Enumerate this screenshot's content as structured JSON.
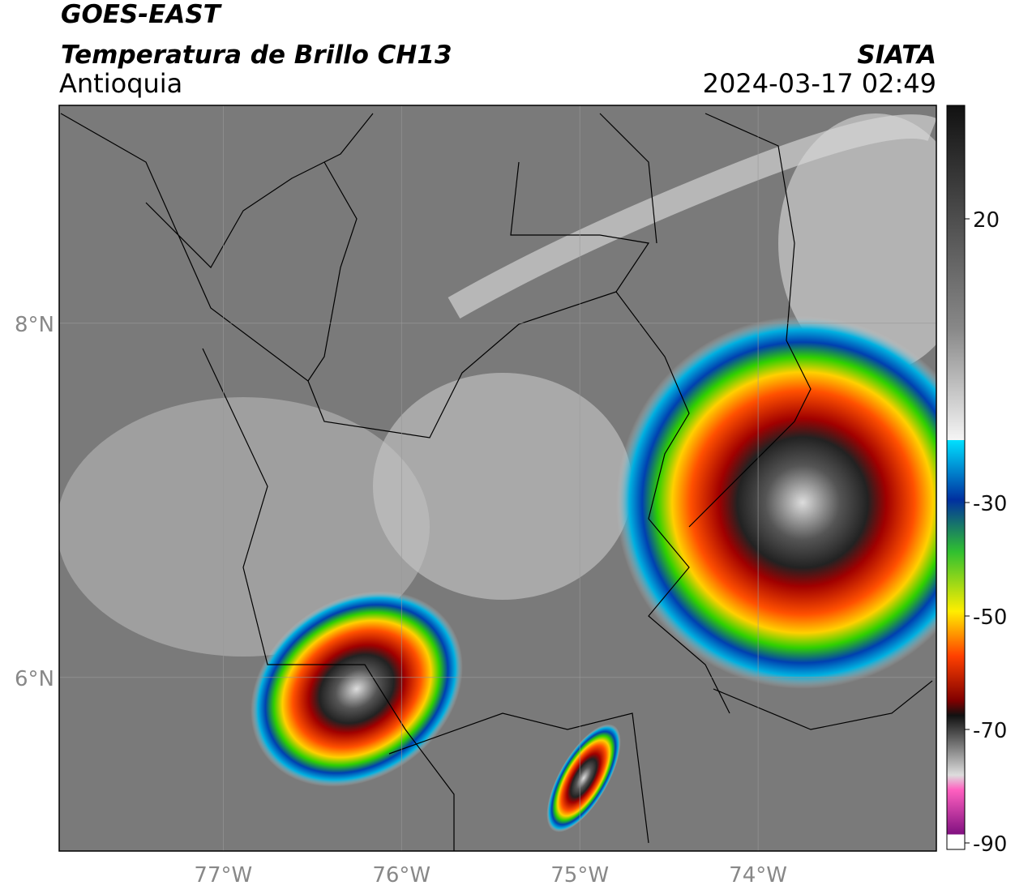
{
  "header": {
    "title": "GOES-EAST",
    "subtitle": "Temperatura de Brillo CH13",
    "region": "Antioquia",
    "source": "SIATA",
    "datetime": "2024-03-17 02:49"
  },
  "map": {
    "xlim": [
      -77.92,
      -73.0
    ],
    "ylim": [
      5.02,
      9.23
    ],
    "xticks": [
      {
        "value": -77,
        "label": "77°W"
      },
      {
        "value": -76,
        "label": "76°W"
      },
      {
        "value": -75,
        "label": "75°W"
      },
      {
        "value": -74,
        "label": "74°W"
      }
    ],
    "yticks": [
      {
        "value": 6,
        "label": "6°N"
      },
      {
        "value": 8,
        "label": "8°N"
      }
    ],
    "grid": true
  },
  "colorbar": {
    "ticks": [
      20,
      -30,
      -50,
      -70,
      -90
    ]
  }
}
